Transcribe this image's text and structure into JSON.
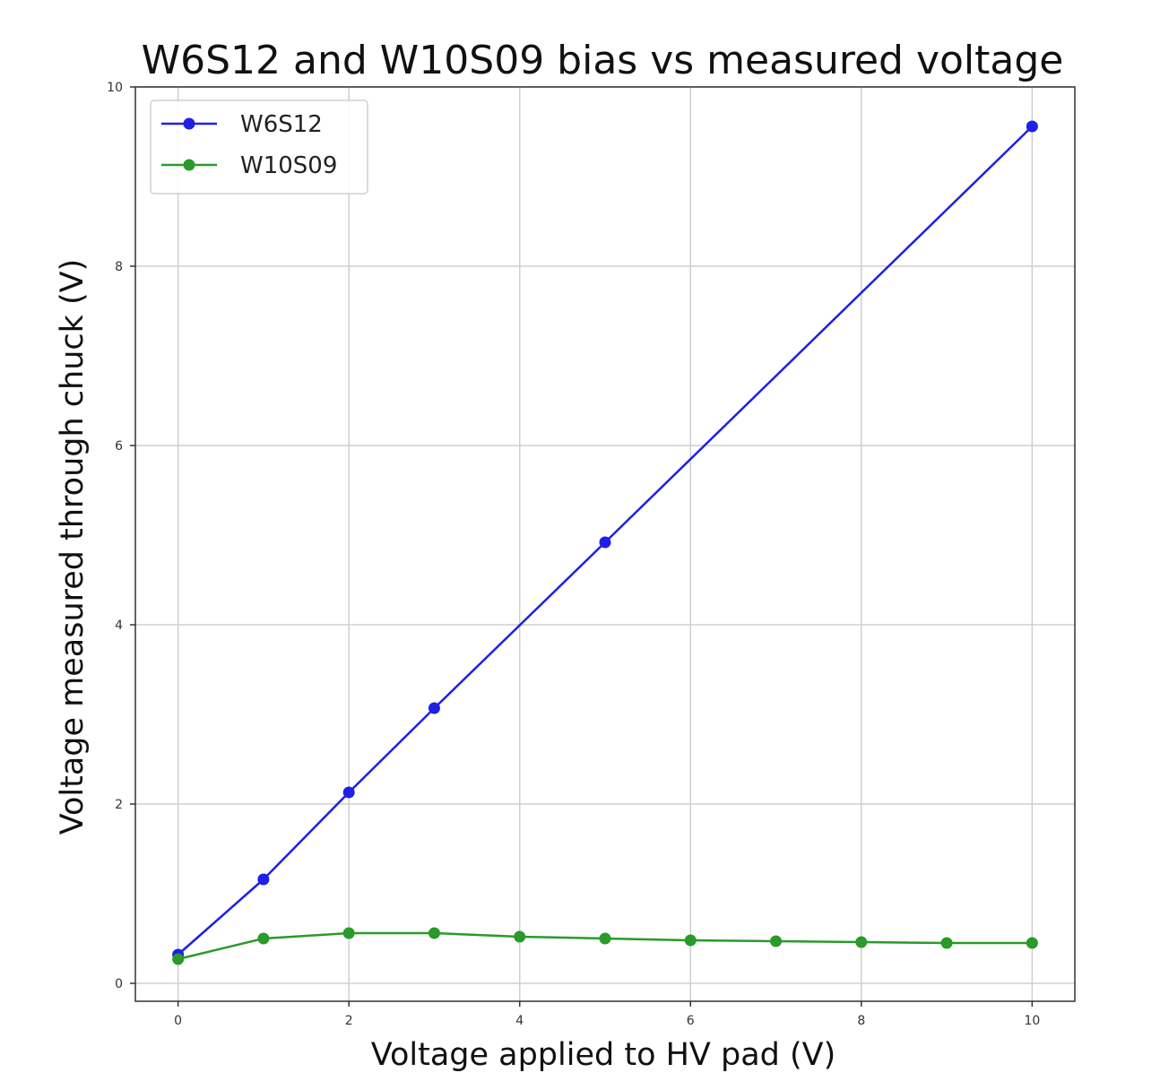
{
  "chart_data": {
    "type": "line",
    "title": "W6S12 and W10S09 bias vs measured voltage",
    "xlabel": "Voltage applied to HV pad (V)",
    "ylabel": "Voltage measured through chuck (V)",
    "xlim": [
      -0.5,
      10.5
    ],
    "ylim": [
      -0.2,
      10
    ],
    "x_ticks": [
      0,
      2,
      4,
      6,
      8,
      10
    ],
    "y_ticks": [
      0,
      2,
      4,
      6,
      8,
      10
    ],
    "grid": true,
    "legend_position": "top-left",
    "series": [
      {
        "name": "W6S12",
        "color": "#1f1fe6",
        "marker": "circle",
        "x": [
          0,
          1,
          2,
          3,
          5,
          10
        ],
        "y": [
          0.32,
          1.16,
          2.13,
          3.07,
          4.92,
          9.56
        ]
      },
      {
        "name": "W10S09",
        "color": "#2a9a2a",
        "marker": "circle",
        "x": [
          0,
          1,
          2,
          3,
          4,
          5,
          6,
          7,
          8,
          9,
          10
        ],
        "y": [
          0.27,
          0.5,
          0.56,
          0.56,
          0.52,
          0.5,
          0.48,
          0.47,
          0.46,
          0.45,
          0.45
        ]
      }
    ]
  }
}
